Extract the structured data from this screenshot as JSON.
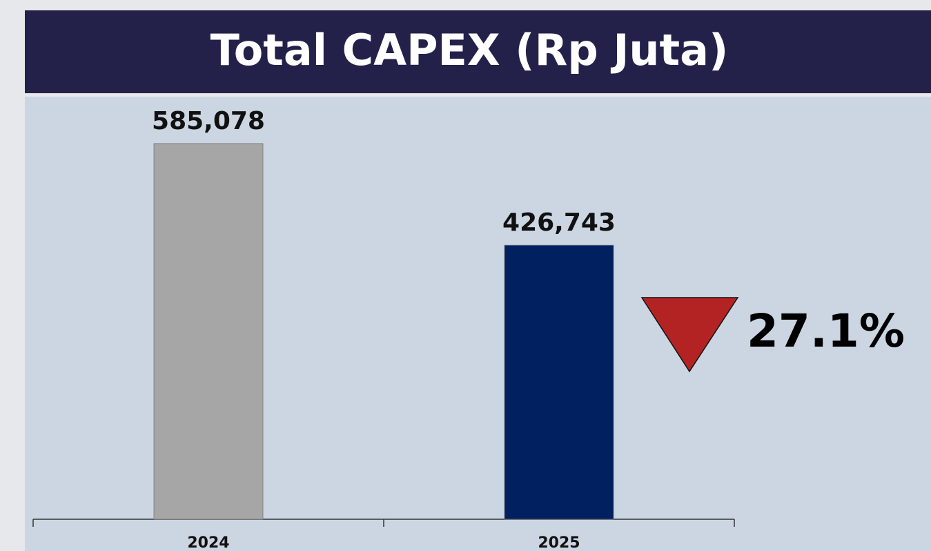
{
  "chart_data": {
    "type": "bar",
    "title": "Total CAPEX (Rp Juta)",
    "categories": [
      "2024",
      "2025"
    ],
    "values": [
      585078,
      426743
    ],
    "value_labels": [
      "585,078",
      "426,743"
    ],
    "colors": [
      "#a6a6a6",
      "#002060"
    ],
    "ylim": [
      0,
      700000
    ],
    "annotations": [
      {
        "text": "27.1%"
      }
    ]
  }
}
